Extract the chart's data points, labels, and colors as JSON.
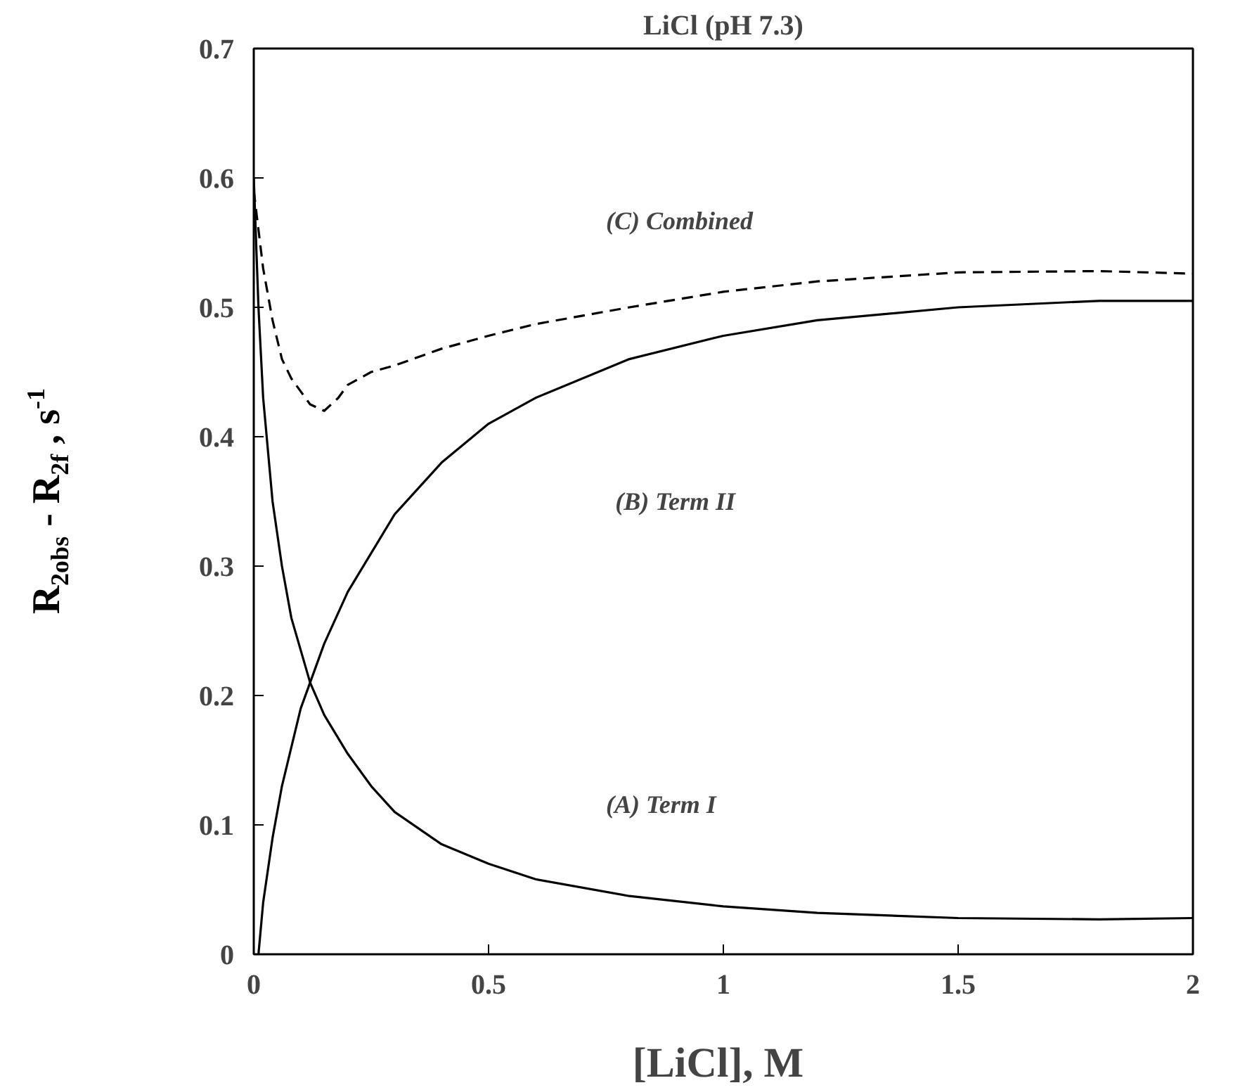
{
  "chart_data": {
    "type": "line",
    "title": "LiCl (pH 7.3)",
    "xlabel": "[LiCl],  M",
    "ylabel": "R$_{2obs}$ - R$_{2f}$ , s$^{-1}$",
    "xlim": [
      0,
      2
    ],
    "xticks": [
      0,
      0.5,
      1,
      1.5,
      2
    ],
    "ylim": [
      0,
      0.7
    ],
    "yticks": [
      0,
      0.1,
      0.2,
      0.3,
      0.4,
      0.5,
      0.6,
      0.7
    ],
    "grid": false,
    "series": [
      {
        "color": "#000000",
        "line_style": "solid",
        "x": [
          0,
          0.01,
          0.02,
          0.04,
          0.06,
          0.08,
          0.1,
          0.12,
          0.15,
          0.2,
          0.25,
          0.3,
          0.4,
          0.5,
          0.6,
          0.8,
          1.0,
          1.2,
          1.5,
          1.8,
          2.0
        ],
        "values": [
          0.6,
          0.5,
          0.43,
          0.35,
          0.3,
          0.26,
          0.235,
          0.21,
          0.185,
          0.155,
          0.13,
          0.11,
          0.085,
          0.07,
          0.058,
          0.045,
          0.037,
          0.032,
          0.028,
          0.027,
          0.028
        ]
      },
      {
        "color": "#000000",
        "line_style": "solid",
        "x": [
          0.01,
          0.02,
          0.04,
          0.06,
          0.08,
          0.1,
          0.12,
          0.15,
          0.2,
          0.25,
          0.3,
          0.4,
          0.5,
          0.6,
          0.8,
          1.0,
          1.2,
          1.5,
          1.8,
          2.0
        ],
        "values": [
          0.0,
          0.04,
          0.09,
          0.13,
          0.16,
          0.19,
          0.21,
          0.24,
          0.28,
          0.31,
          0.34,
          0.38,
          0.41,
          0.43,
          0.46,
          0.478,
          0.49,
          0.5,
          0.505,
          0.505
        ]
      },
      {
        "color": "#000000",
        "line_style": "dashed",
        "x": [
          0,
          0.01,
          0.02,
          0.04,
          0.06,
          0.08,
          0.1,
          0.12,
          0.15,
          0.18,
          0.2,
          0.25,
          0.3,
          0.4,
          0.5,
          0.6,
          0.8,
          1.0,
          1.2,
          1.5,
          1.8,
          2.0
        ],
        "values": [
          0.59,
          0.56,
          0.53,
          0.49,
          0.46,
          0.445,
          0.435,
          0.425,
          0.42,
          0.43,
          0.44,
          0.45,
          0.455,
          0.468,
          0.478,
          0.487,
          0.5,
          0.512,
          0.52,
          0.527,
          0.528,
          0.526
        ]
      }
    ],
    "annotations": [
      "(C)  Combined",
      "(B)  Term II",
      "(A)  Term I"
    ]
  }
}
